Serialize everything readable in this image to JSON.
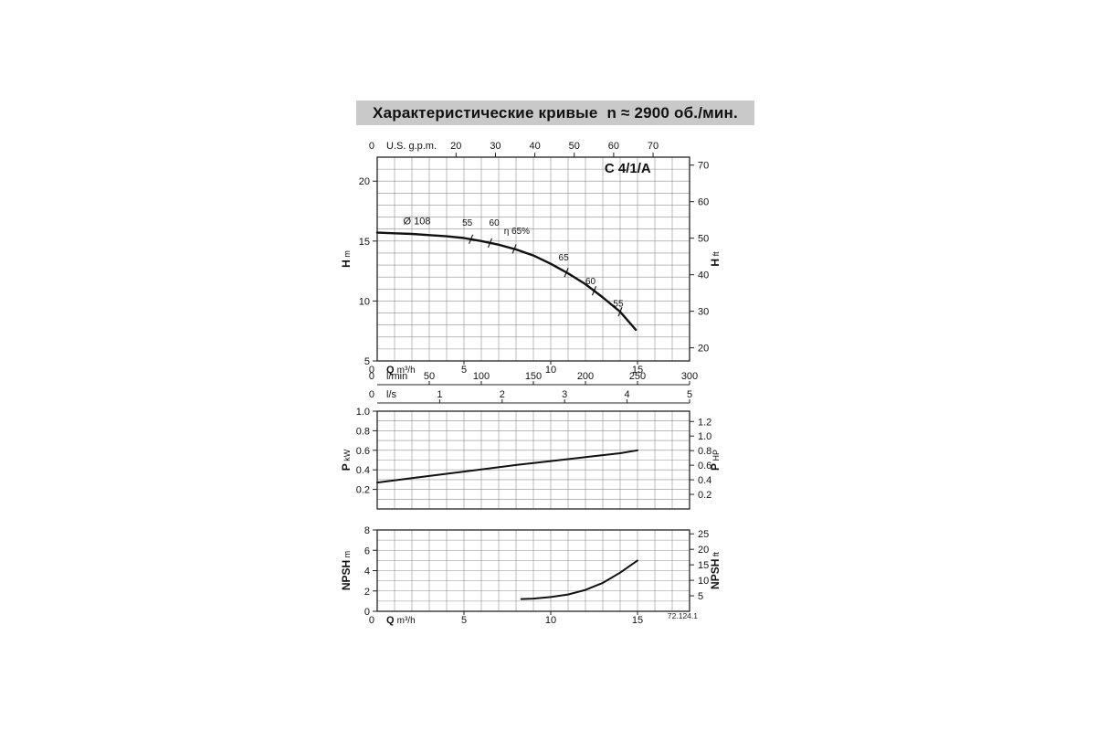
{
  "page": {
    "title": "Характеристические кривые",
    "subtitle": "n ≈ 2900 об./мин.",
    "drawing_number": "72.124.1"
  },
  "chart_data": [
    {
      "id": "head-flow",
      "type": "line",
      "x_unit": "m³/h",
      "x_range": [
        0,
        18
      ],
      "x_step": 1,
      "y_range": [
        5,
        22
      ],
      "y_step": 1,
      "series": [
        {
          "name": "head-curve-108",
          "points": [
            [
              0,
              15.7
            ],
            [
              1,
              15.65
            ],
            [
              2,
              15.6
            ],
            [
              3,
              15.5
            ],
            [
              4,
              15.4
            ],
            [
              5,
              15.25
            ],
            [
              6,
              15.0
            ],
            [
              7,
              14.7
            ],
            [
              8,
              14.3
            ],
            [
              9,
              13.8
            ],
            [
              10,
              13.1
            ],
            [
              11,
              12.3
            ],
            [
              12,
              11.4
            ],
            [
              13,
              10.3
            ],
            [
              14,
              9.1
            ],
            [
              14.9,
              7.6
            ]
          ]
        }
      ],
      "marks": [
        5.4,
        6.5,
        7.9,
        10.9,
        12.5,
        14.0
      ],
      "annotations": [
        {
          "text": "C 4/1/A",
          "x": 13.1,
          "y": 20.7,
          "size": 15,
          "bold": true
        },
        {
          "text": "Ø 108",
          "x": 1.5,
          "y": 16.4,
          "size": 11
        },
        {
          "text": "55",
          "x": 4.9,
          "y": 16.3,
          "size": 10
        },
        {
          "text": "60",
          "x": 6.45,
          "y": 16.3,
          "size": 10
        },
        {
          "text": "η 65%",
          "x": 7.3,
          "y": 15.6,
          "size": 10
        },
        {
          "text": "65",
          "x": 10.45,
          "y": 13.4,
          "size": 10
        },
        {
          "text": "60",
          "x": 12.0,
          "y": 11.4,
          "size": 10
        },
        {
          "text": "55",
          "x": 13.6,
          "y": 9.55,
          "size": 10
        }
      ],
      "axes": {
        "top": {
          "zero": "0",
          "label": "U.S. g.p.m.",
          "factor": 0.2271,
          "ticks": [
            "20",
            "30",
            "40",
            "50",
            "60",
            "70"
          ]
        },
        "left": {
          "label": "H m",
          "ticks": [
            "5",
            "10",
            "15",
            "20"
          ]
        },
        "right": {
          "label": "H ft",
          "factor": 0.3048,
          "ticks": [
            "20",
            "30",
            "40",
            "50",
            "60",
            "70"
          ]
        },
        "bottom": [
          {
            "zero": "0",
            "label": "Q m³/h",
            "factor": 1,
            "ticks": [
              "5",
              "10",
              "15"
            ]
          },
          {
            "zero": "0",
            "label": "l/min",
            "factor": 0.06,
            "ticks": [
              "50",
              "100",
              "150",
              "200",
              "250",
              "300"
            ]
          },
          {
            "zero": "0",
            "label": "l/s",
            "factor": 3.6,
            "ticks": [
              "1",
              "2",
              "3",
              "4",
              "5"
            ]
          }
        ]
      }
    },
    {
      "id": "power-flow",
      "type": "line",
      "x_unit": "m³/h",
      "x_range": [
        0,
        18
      ],
      "x_step": 1,
      "y_range": [
        0,
        1.0
      ],
      "y_step": 0.1,
      "series": [
        {
          "name": "power-curve",
          "points": [
            [
              0,
              0.27
            ],
            [
              2,
              0.315
            ],
            [
              4,
              0.36
            ],
            [
              6,
              0.405
            ],
            [
              8,
              0.45
            ],
            [
              10,
              0.49
            ],
            [
              12,
              0.53
            ],
            [
              14,
              0.57
            ],
            [
              15,
              0.6
            ]
          ]
        }
      ],
      "axes": {
        "left": {
          "label": "P kW",
          "ticks": [
            "0.2",
            "0.4",
            "0.6",
            "0.8",
            "1.0"
          ]
        },
        "right": {
          "label": "P HP",
          "factor": 0.7457,
          "ticks": [
            "0.2",
            "0.4",
            "0.6",
            "0.8",
            "1.0",
            "1.2"
          ]
        }
      }
    },
    {
      "id": "npsh-flow",
      "type": "line",
      "x_unit": "m³/h",
      "x_range": [
        0,
        18
      ],
      "x_step": 1,
      "y_range": [
        0,
        8
      ],
      "y_step": 1,
      "series": [
        {
          "name": "npsh-curve",
          "points": [
            [
              8.3,
              1.2
            ],
            [
              9,
              1.25
            ],
            [
              10,
              1.4
            ],
            [
              11,
              1.65
            ],
            [
              12,
              2.1
            ],
            [
              13,
              2.8
            ],
            [
              14,
              3.8
            ],
            [
              15,
              5.0
            ]
          ]
        }
      ],
      "axes": {
        "left": {
          "label": "NPSH m",
          "ticks": [
            "0",
            "2",
            "4",
            "6",
            "8"
          ]
        },
        "right": {
          "label": "NPSH ft",
          "factor": 0.3048,
          "ticks": [
            "5",
            "10",
            "15",
            "20",
            "25"
          ]
        },
        "bottom": [
          {
            "zero": "0",
            "label": "Q m³/h",
            "factor": 1,
            "ticks": [
              "5",
              "10",
              "15"
            ]
          }
        ]
      }
    }
  ]
}
